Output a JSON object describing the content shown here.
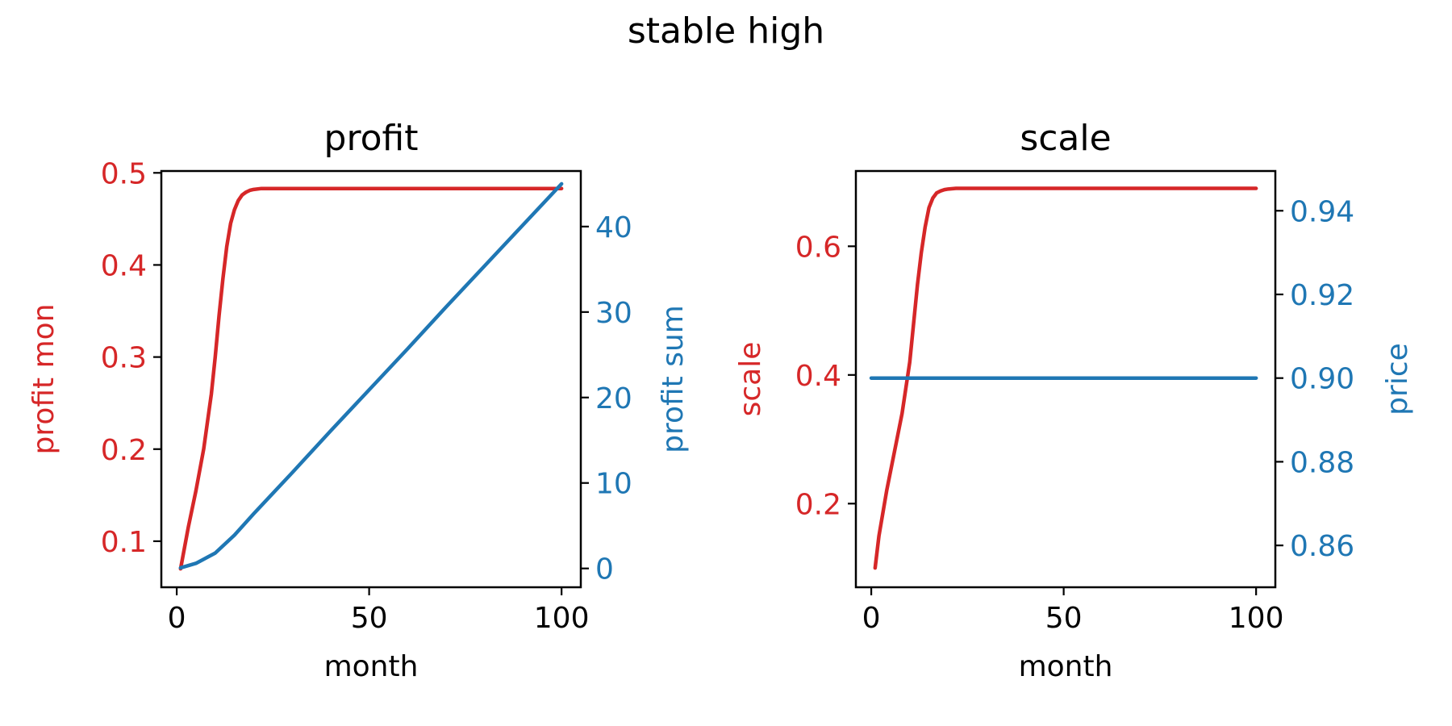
{
  "suptitle": "stable high",
  "colors": {
    "red": "#d62728",
    "blue": "#1f77b4",
    "black": "#000000"
  },
  "chart_data": [
    {
      "type": "line",
      "title": "profit",
      "xlabel": "month",
      "xlim": [
        -4,
        105
      ],
      "xticks": [
        0,
        50,
        100
      ],
      "ylabel_left": "profit mon",
      "ylim_left": [
        0.05,
        0.502
      ],
      "yticks_left": [
        0.1,
        0.2,
        0.3,
        0.4,
        0.5
      ],
      "ylabel_right": "profit sum",
      "ylim_right": [
        -2.2,
        46.5
      ],
      "yticks_right": [
        0,
        10,
        20,
        30,
        40
      ],
      "grid": false,
      "series": [
        {
          "axis": "left",
          "color": "#d62728",
          "x": [
            1,
            3,
            5,
            7,
            9,
            10,
            11,
            12,
            13,
            14,
            15,
            16,
            17,
            18,
            19,
            20,
            22,
            25,
            30,
            40,
            60,
            80,
            100
          ],
          "y": [
            0.07,
            0.115,
            0.155,
            0.2,
            0.26,
            0.3,
            0.345,
            0.385,
            0.42,
            0.445,
            0.46,
            0.47,
            0.476,
            0.479,
            0.481,
            0.482,
            0.483,
            0.483,
            0.483,
            0.483,
            0.483,
            0.483,
            0.483
          ]
        },
        {
          "axis": "right",
          "color": "#1f77b4",
          "x": [
            1,
            5,
            10,
            15,
            20,
            25,
            30,
            40,
            50,
            60,
            70,
            80,
            90,
            100
          ],
          "y": [
            0.07,
            0.6,
            1.8,
            3.9,
            6.4,
            8.8,
            11.2,
            16.1,
            20.9,
            25.7,
            30.6,
            35.4,
            40.2,
            45.0
          ]
        }
      ]
    },
    {
      "type": "line",
      "title": "scale",
      "xlabel": "month",
      "xlim": [
        -4,
        105
      ],
      "xticks": [
        0,
        50,
        100
      ],
      "ylabel_left": "scale",
      "ylim_left": [
        0.07,
        0.717
      ],
      "yticks_left": [
        0.2,
        0.4,
        0.6
      ],
      "ylabel_right": "price",
      "ylim_right": [
        0.85,
        0.9495
      ],
      "yticks_right": [
        0.86,
        0.88,
        0.9,
        0.92,
        0.94
      ],
      "grid": false,
      "series": [
        {
          "axis": "left",
          "color": "#d62728",
          "x": [
            1,
            2,
            4,
            6,
            8,
            9,
            10,
            11,
            12,
            13,
            14,
            15,
            16,
            17,
            18,
            19,
            20,
            22,
            25,
            30,
            40,
            60,
            80,
            100
          ],
          "y": [
            0.1,
            0.15,
            0.22,
            0.28,
            0.34,
            0.38,
            0.42,
            0.48,
            0.54,
            0.59,
            0.63,
            0.66,
            0.675,
            0.683,
            0.686,
            0.688,
            0.689,
            0.69,
            0.69,
            0.69,
            0.69,
            0.69,
            0.69,
            0.69
          ]
        },
        {
          "axis": "right",
          "color": "#1f77b4",
          "x": [
            0,
            100
          ],
          "y": [
            0.9,
            0.9
          ]
        }
      ]
    }
  ]
}
